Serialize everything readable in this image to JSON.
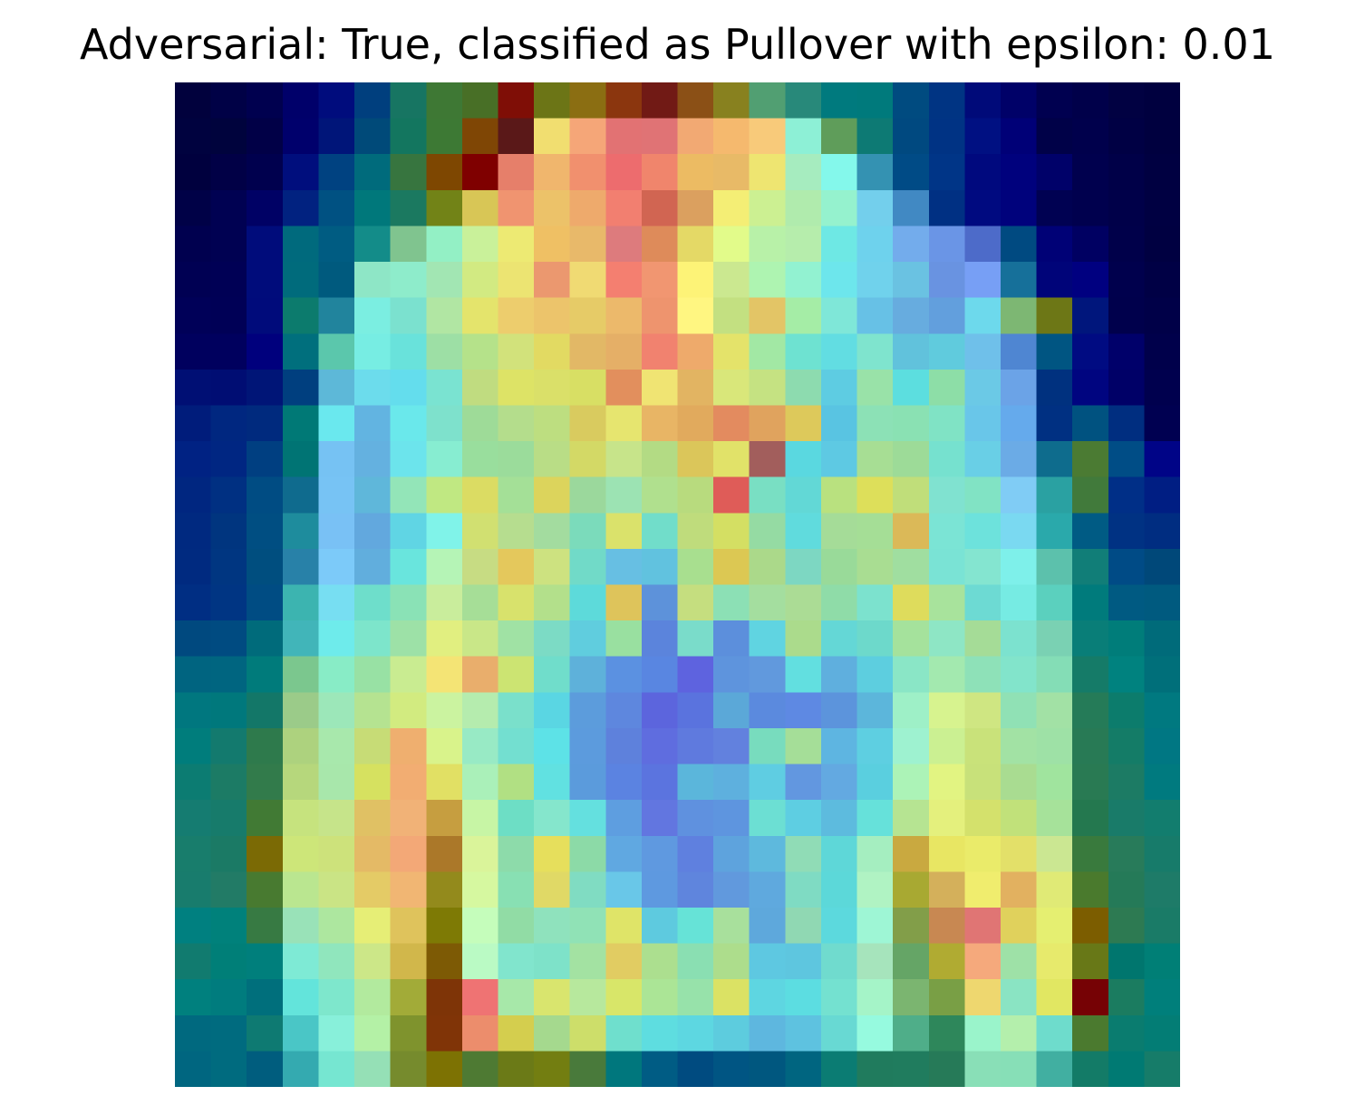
{
  "title": "Adversarial: True, classified as Pullover with epsilon: 0.01",
  "chart_data": {
    "type": "heatmap",
    "title": "Adversarial: True, classified as Pullover with epsilon: 0.01",
    "colormap": "jet (overlay)",
    "rows": 28,
    "cols": 28,
    "axes_visible": false,
    "cells": [
      [
        "#01013d",
        "#000146",
        "#00004f",
        "#00006a",
        "#000c7d",
        "#003f7e",
        "#177562",
        "#3e7834",
        "#486f26",
        "#7f0e06",
        "#6c7516",
        "#8b6e12",
        "#8b360e",
        "#711a15",
        "#8b5016",
        "#88811f",
        "#519f72",
        "#28897a",
        "#007a7e",
        "#007a7c",
        "#004b80",
        "#003483",
        "#000a79",
        "#000168",
        "#000050",
        "#00004a",
        "#010142",
        "#00003f"
      ],
      [
        "#00023f",
        "#00033d",
        "#010047",
        "#00006c",
        "#001579",
        "#004a79",
        "#13765f",
        "#3d7934",
        "#7f4605",
        "#5a1818",
        "#f1de70",
        "#f5a678",
        "#e27273",
        "#e07375",
        "#f2a973",
        "#f5b96e",
        "#f8ca7a",
        "#8df0d6",
        "#5f9d5a",
        "#0d7a74",
        "#004980",
        "#003384",
        "#001082",
        "#000077",
        "#000148",
        "#00004c",
        "#000044",
        "#00003f"
      ],
      [
        "#00003e",
        "#010046",
        "#00004e",
        "#000e7d",
        "#004281",
        "#006b7c",
        "#37753f",
        "#7e4701",
        "#7f0000",
        "#e67f6a",
        "#f0b66d",
        "#f1906e",
        "#ed6c6e",
        "#f0856c",
        "#ecbb63",
        "#e8ba67",
        "#eee571",
        "#a6ecbf",
        "#84f8eb",
        "#3492b2",
        "#004b86",
        "#003587",
        "#00097e",
        "#00017d",
        "#000169",
        "#00004e",
        "#000048",
        "#000041"
      ],
      [
        "#000147",
        "#000152",
        "#000165",
        "#012280",
        "#005182",
        "#00787b",
        "#1b7960",
        "#728317",
        "#d8c656",
        "#f09470",
        "#ecc269",
        "#eeaa6c",
        "#f27f70",
        "#d16552",
        "#dba05f",
        "#f4ee75",
        "#ccf092",
        "#b0ebad",
        "#95f2ce",
        "#73cfec",
        "#4189c3",
        "#003083",
        "#000a80",
        "#00027c",
        "#000152",
        "#00004e",
        "#000049",
        "#000042"
      ],
      [
        "#00004f",
        "#000152",
        "#000c7b",
        "#006a7d",
        "#005c82",
        "#138c89",
        "#80c48f",
        "#93f0c5",
        "#c9f19a",
        "#edea73",
        "#efc064",
        "#e8b96a",
        "#dd7b7d",
        "#de8b5a",
        "#e4d966",
        "#e2fb8a",
        "#b8f1a8",
        "#b6edac",
        "#6ee8e4",
        "#6ed2ed",
        "#73acec",
        "#6a95e6",
        "#4d6bc9",
        "#004a81",
        "#000176",
        "#000062",
        "#00004a",
        "#000041"
      ],
      [
        "#000053",
        "#000055",
        "#000c7b",
        "#006b7c",
        "#005a7e",
        "#8ee6c6",
        "#8eeccb",
        "#a2e6b3",
        "#d2ea82",
        "#ece472",
        "#eb986f",
        "#f0da73",
        "#f47f70",
        "#f19671",
        "#fdf377",
        "#cbe890",
        "#aef4b1",
        "#92f2d1",
        "#6de6ec",
        "#70d2ec",
        "#6ac2e2",
        "#6993e1",
        "#779ff5",
        "#16709a",
        "#000479",
        "#000080",
        "#00004d",
        "#000045"
      ],
      [
        "#000058",
        "#000056",
        "#000b7b",
        "#0c7b6d",
        "#21849d",
        "#7beee1",
        "#7be1cf",
        "#b1e6a3",
        "#e4e46c",
        "#edcd6d",
        "#ecc46b",
        "#e6cb67",
        "#ecb96b",
        "#ee946e",
        "#fff681",
        "#c3e081",
        "#e3c566",
        "#a5eda6",
        "#7fe7d8",
        "#67c1e6",
        "#67acdf",
        "#629fdd",
        "#6dd9ec",
        "#7db773",
        "#6d7716",
        "#00167c",
        "#00004c",
        "#000048"
      ],
      [
        "#00005e",
        "#00005e",
        "#00007d",
        "#006f7d",
        "#5bc7ac",
        "#77ede3",
        "#69e2db",
        "#9ddfa5",
        "#b5e28a",
        "#d2e27b",
        "#e2da62",
        "#e2b866",
        "#e5af67",
        "#f1826f",
        "#eeaa6b",
        "#e4e36a",
        "#a2e8a4",
        "#6ee2d1",
        "#62dde2",
        "#7fe4ce",
        "#61c2dc",
        "#60cbdd",
        "#6fc0ea",
        "#4f86d2",
        "#005582",
        "#000b82",
        "#00006a",
        "#00004b"
      ],
      [
        "#000f74",
        "#000d73",
        "#001577",
        "#003f7f",
        "#5db8d8",
        "#6cdcec",
        "#64dded",
        "#7ae3d1",
        "#c0dc80",
        "#dde366",
        "#dae069",
        "#d8df64",
        "#e28f5d",
        "#f0e473",
        "#e2b462",
        "#d9e77a",
        "#c5e282",
        "#8ddbaf",
        "#5ecce2",
        "#99e2a8",
        "#5cdedf",
        "#8ddea7",
        "#6bc9e6",
        "#6ba3e7",
        "#00317f",
        "#000580",
        "#000067",
        "#00004e"
      ],
      [
        "#001c7b",
        "#002780",
        "#002a7e",
        "#007976",
        "#6ae8ee",
        "#62b4e1",
        "#6ae8eb",
        "#7ee1cc",
        "#9edb98",
        "#b4dd8c",
        "#bdde80",
        "#d9cb5f",
        "#e6e56f",
        "#e8b565",
        "#e1aa5d",
        "#e38b5f",
        "#e0a35e",
        "#ddc95b",
        "#59c4e2",
        "#8ce1b6",
        "#8ae1b3",
        "#80e3c5",
        "#69c6e9",
        "#65aaec",
        "#003082",
        "#005280",
        "#002e80",
        "#000051"
      ],
      [
        "#002283",
        "#002682",
        "#003f81",
        "#007474",
        "#76c2f3",
        "#64b1e0",
        "#6ce4ec",
        "#87edd1",
        "#99de9d",
        "#9bdc9b",
        "#b9dd86",
        "#d3d966",
        "#c7e48a",
        "#b3db84",
        "#dbc65a",
        "#e1e269",
        "#a25e5c",
        "#5ad8e0",
        "#5ec9e3",
        "#a7de94",
        "#9ddb98",
        "#76e1cf",
        "#69cfe6",
        "#6babe6",
        "#0e6c8d",
        "#4b7b33",
        "#004d86",
        "#000487"
      ],
      [
        "#002680",
        "#003082",
        "#004c83",
        "#0f6b8e",
        "#77c3f4",
        "#5fb7da",
        "#93e5b8",
        "#c0e882",
        "#dbdc63",
        "#a4e097",
        "#dcd45c",
        "#9bd89c",
        "#9ce3b3",
        "#b0e08e",
        "#b8db7e",
        "#df5c58",
        "#79dfc3",
        "#62d8d6",
        "#b9e17f",
        "#dddf5a",
        "#c0de7a",
        "#80e2d0",
        "#81e3c4",
        "#80ccf5",
        "#2aa1a2",
        "#417a3b",
        "#002f87",
        "#001e83"
      ],
      [
        "#002980",
        "#00357f",
        "#004e82",
        "#1e8c9d",
        "#79c1f5",
        "#62a8de",
        "#60d5e4",
        "#80f3e9",
        "#d1e071",
        "#b6dd8f",
        "#a3dc9f",
        "#7bdbbb",
        "#dae26b",
        "#71ddca",
        "#bfdc7c",
        "#d4df63",
        "#95dba3",
        "#60dbdd",
        "#a5dc98",
        "#a5de96",
        "#dbb958",
        "#7be4d5",
        "#6de2dc",
        "#7ad9f1",
        "#2aa9ab",
        "#005b84",
        "#003283",
        "#002d81"
      ],
      [
        "#002a80",
        "#003681",
        "#004e7f",
        "#2881a8",
        "#7ccaf9",
        "#61aedd",
        "#69e5dd",
        "#b5f4b6",
        "#c7dc83",
        "#e4c85c",
        "#cde280",
        "#71dac8",
        "#67bfe3",
        "#61c2df",
        "#a8df8f",
        "#dcc853",
        "#abd98a",
        "#7dd7c2",
        "#99da99",
        "#a9dd92",
        "#a0dea0",
        "#7ae3d5",
        "#84e5d0",
        "#7ef0ea",
        "#5cc1ac",
        "#117e78",
        "#004b86",
        "#004879"
      ],
      [
        "#002e83",
        "#003583",
        "#004c83",
        "#3cb4b0",
        "#77def2",
        "#6edecb",
        "#8ae2b6",
        "#c9ed9c",
        "#a6de97",
        "#d8e26c",
        "#b3e08b",
        "#5ddada",
        "#dec45b",
        "#5d92da",
        "#c5de7f",
        "#8ce0b5",
        "#a4de9f",
        "#abdc95",
        "#8fdca8",
        "#7ce2ce",
        "#dedc5c",
        "#a8e39c",
        "#6ddad3",
        "#76ebe3",
        "#5bd0be",
        "#007b7c",
        "#005a82",
        "#005a7f"
      ],
      [
        "#00497f",
        "#004b81",
        "#006b7b",
        "#41b5b9",
        "#6eebeb",
        "#7de5cb",
        "#9de1a7",
        "#e1ef80",
        "#c9e788",
        "#a0e2a4",
        "#7cdbc5",
        "#60cdde",
        "#99e0a0",
        "#5b84dc",
        "#7adcca",
        "#5c8fdc",
        "#60d4e1",
        "#abdb8c",
        "#64d7d6",
        "#6dd9cb",
        "#a5e29c",
        "#8ee6c5",
        "#a5dc97",
        "#7ce2cf",
        "#7ad1b3",
        "#097e78",
        "#007d7a",
        "#006b7a"
      ],
      [
        "#006480",
        "#006580",
        "#007b7b",
        "#7bc78e",
        "#88ecc6",
        "#98e1a4",
        "#c9ec91",
        "#f4e475",
        "#e9ae6c",
        "#cce472",
        "#70ddcb",
        "#5eb1da",
        "#5b91e1",
        "#5986e1",
        "#5e63df",
        "#5e94dd",
        "#6199dd",
        "#62dfe0",
        "#5fafde",
        "#5dcedf",
        "#8ae6c6",
        "#a3e9af",
        "#8ee1b8",
        "#82e4cb",
        "#84ddb6",
        "#157b68",
        "#00827f",
        "#006f7a"
      ],
      [
        "#00777f",
        "#00787c",
        "#137768",
        "#9bcb89",
        "#9ce7b9",
        "#b5e391",
        "#d2eb80",
        "#cbf3a0",
        "#b5ecae",
        "#7ae0cb",
        "#5ad6e3",
        "#5c9cdc",
        "#5e87de",
        "#5c65dd",
        "#5a73de",
        "#5ba8d8",
        "#5b8ade",
        "#5e89e3",
        "#5c94dc",
        "#5cb6db",
        "#9ef0c7",
        "#d7f38f",
        "#cfe682",
        "#90e1b5",
        "#a2e1a5",
        "#257b58",
        "#0c7c6c",
        "#007980"
      ],
      [
        "#007d7c",
        "#137a6e",
        "#2e7a4c",
        "#add27e",
        "#a8e8ac",
        "#c7dc76",
        "#efaf6f",
        "#d9f38b",
        "#98eac5",
        "#73dfd0",
        "#5de2e7",
        "#5c9bdd",
        "#5e81dc",
        "#5f6ddf",
        "#5f7ade",
        "#6281de",
        "#78dcbe",
        "#a5de98",
        "#5eb5e1",
        "#5ecfe1",
        "#9ef2d0",
        "#cbf092",
        "#c9e27a",
        "#a2e2a4",
        "#9ee1a6",
        "#287a55",
        "#147c67",
        "#007783"
      ],
      [
        "#0c7c72",
        "#1c7b65",
        "#327b4b",
        "#b6d77c",
        "#a8e7ab",
        "#d6e160",
        "#f2ad72",
        "#e1e064",
        "#aaf0b9",
        "#b1e083",
        "#61e1e1",
        "#5b9bdc",
        "#5b83e1",
        "#5b74df",
        "#5bb6db",
        "#5eb0de",
        "#5fcde2",
        "#6297e0",
        "#63a9e1",
        "#5acfdf",
        "#acf3b7",
        "#e2f482",
        "#c8e17a",
        "#a9dc91",
        "#a0e49e",
        "#297a53",
        "#1c7b64",
        "#007a7f"
      ],
      [
        "#157c71",
        "#177b6b",
        "#417a34",
        "#c6e37e",
        "#c6e48a",
        "#e0c164",
        "#f1b277",
        "#c69e40",
        "#c7f5a5",
        "#6ddec5",
        "#85e6cc",
        "#64e0df",
        "#5e9ee0",
        "#6276e0",
        "#5f91df",
        "#5e95df",
        "#6cdfd3",
        "#5ecee2",
        "#5dbbde",
        "#66e1da",
        "#b6e492",
        "#e4f07d",
        "#d4e16c",
        "#c1e17a",
        "#a6e29a",
        "#24784f",
        "#197b69",
        "#127d6e"
      ],
      [
        "#187d6c",
        "#1b7a65",
        "#7b6a05",
        "#cde679",
        "#cde27b",
        "#e4ba66",
        "#f3a877",
        "#ab7829",
        "#daf49a",
        "#8ddbaa",
        "#e6df5c",
        "#8cdaa7",
        "#60a8e1",
        "#5f99e0",
        "#5f80df",
        "#5ea3dd",
        "#5eb9dd",
        "#90dcb6",
        "#5ed7d8",
        "#a5eec0",
        "#c9a940",
        "#e8e663",
        "#eaeb6a",
        "#e3e069",
        "#cbe792",
        "#397a3d",
        "#287b5a",
        "#177b6a"
      ],
      [
        "#187c6d",
        "#227b66",
        "#487a30",
        "#bae690",
        "#cae485",
        "#e4cb66",
        "#f1b673",
        "#938a1c",
        "#d6f8a0",
        "#88e0b3",
        "#e0d966",
        "#80dcc2",
        "#69c7e8",
        "#5e99e0",
        "#5f85dd",
        "#6199dd",
        "#5fa9de",
        "#7fdbc3",
        "#5cd8d9",
        "#b0f3c3",
        "#a8a932",
        "#d4b05b",
        "#f0ed6e",
        "#e2b160",
        "#e0ea76",
        "#4a7a2d",
        "#257a58",
        "#1e7b68"
      ],
      [
        "#008080",
        "#00817b",
        "#377a43",
        "#99e2b8",
        "#ade79f",
        "#e6ee76",
        "#dfc35c",
        "#7e7a05",
        "#c5fdbb",
        "#91dca5",
        "#8fe2bd",
        "#90e2b6",
        "#dfe468",
        "#5ecadf",
        "#66e3d7",
        "#a8e09c",
        "#5ea8dc",
        "#90d8b3",
        "#5cd9dd",
        "#9ef6d5",
        "#829e49",
        "#c88852",
        "#e07574",
        "#e0d15c",
        "#e5ef71",
        "#7c5d00",
        "#2d7a52",
        "#1a7b67"
      ],
      [
        "#117b6f",
        "#007f78",
        "#007f7c",
        "#7eead5",
        "#90e6bd",
        "#cce788",
        "#d1b74b",
        "#7d5a05",
        "#bafac4",
        "#81e5cd",
        "#7ee2c9",
        "#a3e2a2",
        "#e1cc62",
        "#acdf8f",
        "#8adfb2",
        "#addd8c",
        "#5ec8e1",
        "#5ec6df",
        "#70dbce",
        "#a6e4bc",
        "#65a566",
        "#b0ab32",
        "#f5a97c",
        "#9ee1a7",
        "#e7ea6c",
        "#687817",
        "#00766e",
        "#007f76"
      ],
      [
        "#00807e",
        "#007c7e",
        "#006f7c",
        "#63e4db",
        "#7ee7cc",
        "#b2ea9e",
        "#a2ab38",
        "#7e3407",
        "#ef7373",
        "#a7e8a9",
        "#d9e56e",
        "#b7e89d",
        "#d8e669",
        "#abe596",
        "#97e2aa",
        "#dbe264",
        "#5ed6e1",
        "#5cdde1",
        "#74e1d0",
        "#a5f4c8",
        "#7bb570",
        "#799f45",
        "#eed76f",
        "#8ae4c3",
        "#e1e762",
        "#760205",
        "#1b7c60",
        "#007f7b"
      ],
      [
        "#00697f",
        "#006b7f",
        "#0e7a72",
        "#4ac6c6",
        "#88f0da",
        "#b4f1a6",
        "#7f932d",
        "#803407",
        "#ec8d6c",
        "#d4ce4e",
        "#a5d98e",
        "#cdde6a",
        "#6fdfcd",
        "#5edde0",
        "#5dd7e1",
        "#5dccde",
        "#5eb7df",
        "#5ec2e0",
        "#68d9d3",
        "#96fadf",
        "#4fae89",
        "#2e875b",
        "#9af4cb",
        "#b4efac",
        "#6edccc",
        "#4b7a2f",
        "#0a7c6f",
        "#037d75"
      ],
      [
        "#006680",
        "#006b7f",
        "#005d7e",
        "#34aab0",
        "#76e6d1",
        "#95e0b6",
        "#768b2d",
        "#7d7203",
        "#4e7a33",
        "#6b7a17",
        "#737e11",
        "#497a3b",
        "#00777d",
        "#005c84",
        "#004b80",
        "#005583",
        "#00577f",
        "#006580",
        "#0b7c73",
        "#207b5d",
        "#207c5e",
        "#267a58",
        "#89dfb7",
        "#87dfb7",
        "#41afa1",
        "#137b67",
        "#007a73",
        "#167c69"
      ]
    ]
  }
}
